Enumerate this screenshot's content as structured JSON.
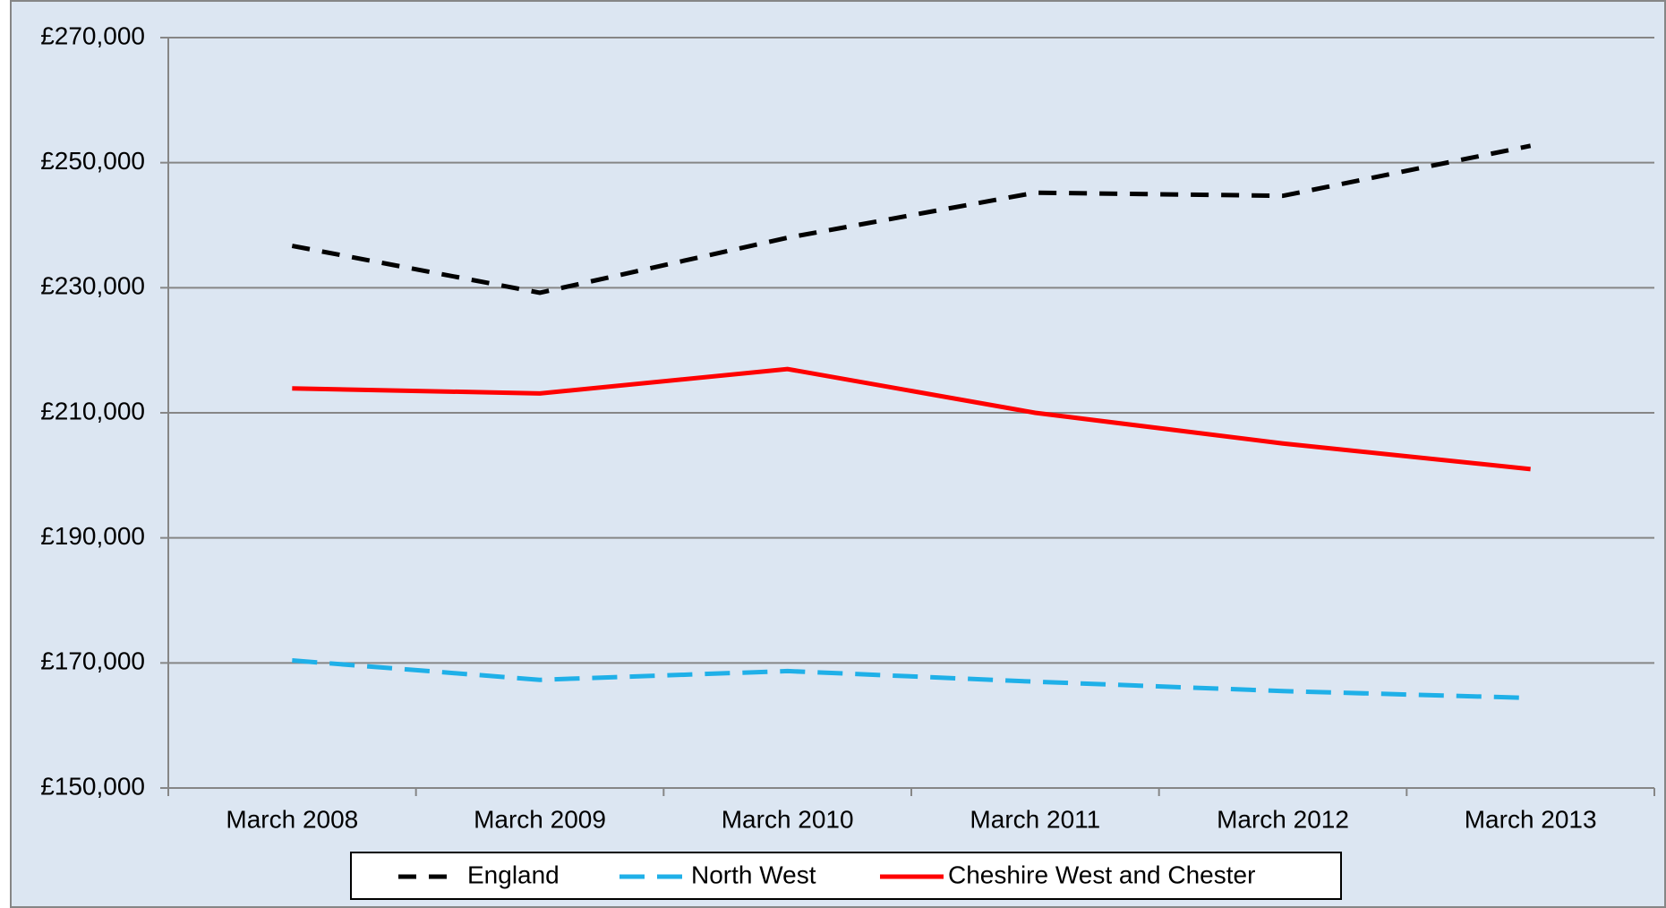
{
  "chart_data": {
    "type": "line",
    "categories": [
      "March 2008",
      "March 2009",
      "March 2010",
      "March 2011",
      "March 2012",
      "March 2013"
    ],
    "series": [
      {
        "name": "England",
        "color": "#000000",
        "line_style": "dash",
        "values": [
          236700,
          229200,
          238000,
          245200,
          244700,
          252700
        ]
      },
      {
        "name": "North West",
        "color": "#1fb0e8",
        "line_style": "dash",
        "values": [
          170400,
          167300,
          168700,
          167000,
          165500,
          164400
        ]
      },
      {
        "name": "Cheshire West and Chester",
        "color": "#ff0000",
        "line_style": "solid",
        "values": [
          213900,
          213100,
          217000,
          210000,
          205100,
          201000
        ]
      }
    ],
    "ylim": [
      150000,
      270000
    ],
    "yticks": [
      {
        "value": 150000,
        "label": "£150,000"
      },
      {
        "value": 170000,
        "label": "£170,000"
      },
      {
        "value": 190000,
        "label": "£190,000"
      },
      {
        "value": 210000,
        "label": "£210,000"
      },
      {
        "value": 230000,
        "label": "£230,000"
      },
      {
        "value": 250000,
        "label": "£250,000"
      },
      {
        "value": 270000,
        "label": "£270,000"
      }
    ],
    "grid": true,
    "legend": "bottom"
  }
}
